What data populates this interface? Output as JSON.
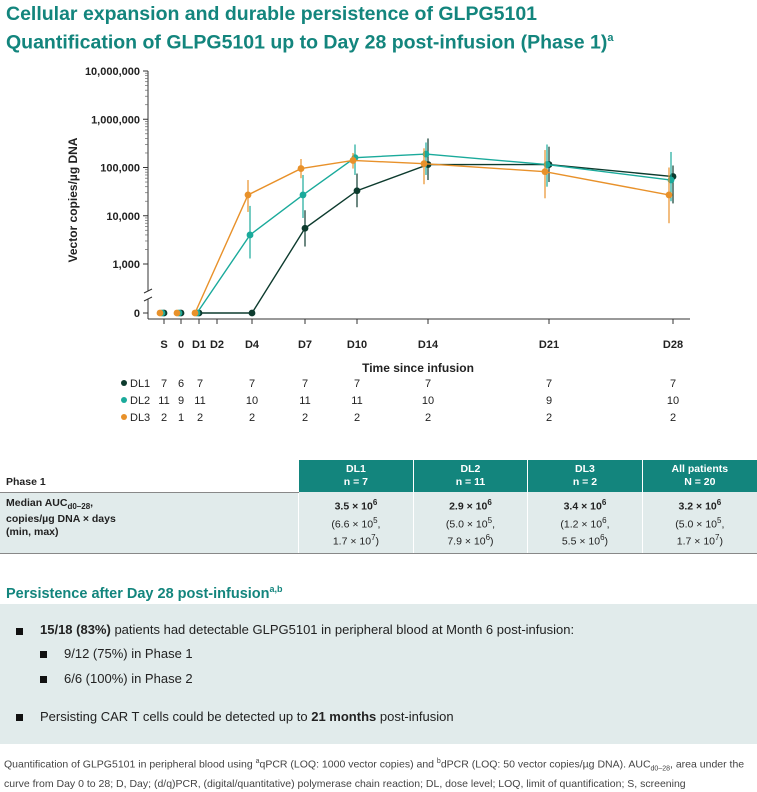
{
  "title": {
    "line1": "Cellular expansion and durable persistence of GLPG5101",
    "line2": "Quantification of GLPG5101 up to Day 28 post-infusion (Phase 1)",
    "line2_sup": "a"
  },
  "chart_data": {
    "type": "line",
    "ylabel": "Vector copies/µg DNA",
    "xlabel": "Time since infusion",
    "y_scale": "log",
    "y_ticks": [
      "10,000,000",
      "1,000,000",
      "100,000",
      "10,000",
      "1,000",
      "0"
    ],
    "categories": [
      "S",
      "0",
      "D1",
      "D2",
      "D4",
      "D7",
      "D10",
      "D14",
      "D21",
      "D28"
    ],
    "series": [
      {
        "name": "DL1",
        "color": "#0d3b2e",
        "points": [
          {
            "x": "S",
            "y": 0
          },
          {
            "x": "0",
            "y": 0
          },
          {
            "x": "D1",
            "y": 0
          },
          {
            "x": "D4",
            "y": 0
          },
          {
            "x": "D7",
            "y": 5500,
            "lo": 2300,
            "hi": 13000
          },
          {
            "x": "D10",
            "y": 33000,
            "lo": 15000,
            "hi": 75000
          },
          {
            "x": "D14",
            "y": 115000,
            "lo": 55000,
            "hi": 400000
          },
          {
            "x": "D21",
            "y": 115000,
            "lo": 50000,
            "hi": 270000
          },
          {
            "x": "D28",
            "y": 65000,
            "lo": 18000,
            "hi": 110000
          }
        ],
        "n": [
          "7",
          "6",
          "7",
          "7",
          "7",
          "7",
          "7",
          "7",
          "7"
        ]
      },
      {
        "name": "DL2",
        "color": "#1aaa9b",
        "points": [
          {
            "x": "S",
            "y": 0
          },
          {
            "x": "0",
            "y": 0
          },
          {
            "x": "D1",
            "y": 0
          },
          {
            "x": "D4",
            "y": 4000,
            "lo": 1300,
            "hi": 16000
          },
          {
            "x": "D7",
            "y": 27000,
            "lo": 9000,
            "hi": 70000
          },
          {
            "x": "D10",
            "y": 160000,
            "lo": 70000,
            "hi": 300000
          },
          {
            "x": "D14",
            "y": 190000,
            "lo": 70000,
            "hi": 330000
          },
          {
            "x": "D21",
            "y": 115000,
            "lo": 40000,
            "hi": 300000
          },
          {
            "x": "D28",
            "y": 55000,
            "lo": 20000,
            "hi": 210000
          }
        ],
        "n": [
          "11",
          "9",
          "11",
          "10",
          "11",
          "11",
          "10",
          "9",
          "10"
        ]
      },
      {
        "name": "DL3",
        "color": "#e8912a",
        "points": [
          {
            "x": "S",
            "y": 0
          },
          {
            "x": "0",
            "y": 0
          },
          {
            "x": "D1",
            "y": 0
          },
          {
            "x": "D4",
            "y": 27000,
            "lo": 12000,
            "hi": 55000
          },
          {
            "x": "D7",
            "y": 95000,
            "lo": 60000,
            "hi": 150000
          },
          {
            "x": "D10",
            "y": 140000,
            "lo": 95000,
            "hi": 200000
          },
          {
            "x": "D14",
            "y": 120000,
            "lo": 45000,
            "hi": 250000
          },
          {
            "x": "D21",
            "y": 82000,
            "lo": 23000,
            "hi": 230000
          },
          {
            "x": "D28",
            "y": 27000,
            "lo": 7000,
            "hi": 100000
          }
        ],
        "n": [
          "2",
          "1",
          "2",
          "2",
          "2",
          "2",
          "2",
          "2",
          "2"
        ]
      }
    ]
  },
  "table": {
    "phase_label": "Phase 1",
    "columns": [
      {
        "name": "DL1",
        "n": "n = 7"
      },
      {
        "name": "DL2",
        "n": "n = 11"
      },
      {
        "name": "DL3",
        "n": "n = 2"
      },
      {
        "name": "All patients",
        "n": "N = 20"
      }
    ],
    "row_label_line1": "Median AUC",
    "row_label_sub": "d0–28",
    "row_label_line1_end": ",",
    "row_label_line2": "copies/µg DNA × days",
    "row_label_line3": "(min, max)",
    "cells": [
      {
        "median": "3.5 × 10",
        "median_exp": "6",
        "min": "(6.6 × 10",
        "min_exp": "5",
        "max": "1.7 × 10",
        "max_exp": "7"
      },
      {
        "median": "2.9 × 10",
        "median_exp": "6",
        "min": "(5.0 × 10",
        "min_exp": "5",
        "max": "7.9 × 10",
        "max_exp": "6"
      },
      {
        "median": "3.4 × 10",
        "median_exp": "6",
        "min": "(1.2 × 10",
        "min_exp": "6",
        "max": "5.5 × 10",
        "max_exp": "6"
      },
      {
        "median": "3.2 × 10",
        "median_exp": "6",
        "min": "(5.0 × 10",
        "min_exp": "5",
        "max": "1.7 × 10",
        "max_exp": "7"
      }
    ]
  },
  "persistence": {
    "heading": "Persistence after Day 28 post-infusion",
    "heading_sup": "a,b",
    "bullet1_bold": "15/18 (83%)",
    "bullet1_rest": " patients had detectable GLPG5101 in peripheral blood at Month 6 post-infusion:",
    "sub1": "9/12 (75%) in Phase 1",
    "sub2": "6/6 (100%) in Phase 2",
    "bullet2_pre": "Persisting CAR T cells could be detected up to ",
    "bullet2_bold": "21 months",
    "bullet2_post": " post-infusion"
  },
  "footnote": {
    "t1": "Quantification of GLPG5101 in peripheral blood using ",
    "s1": "a",
    "t2": "qPCR (LOQ: 1000 vector copies) and ",
    "s2": "b",
    "t3": "dPCR (LOQ: 50 vector copies/µg DNA).  AUC",
    "sub": "d0–28",
    "t4": ", area under the curve from Day 0 to 28; D, Day; (d/q)PCR, (digital/quantitative) polymerase chain reaction; DL, dose level; LOQ, limit of quantification; S, screening"
  }
}
